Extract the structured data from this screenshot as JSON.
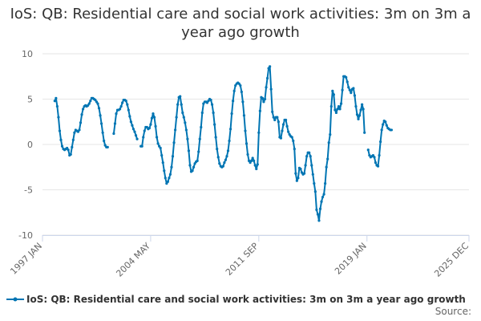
{
  "chart_data": {
    "type": "line",
    "title": "IoS: QB: Residential care and social work activities: 3m on 3m a year ago growth",
    "xlabel": "",
    "ylabel": "",
    "ylim": [
      -10,
      10
    ],
    "yticks": [
      10,
      5,
      0,
      -5,
      -10
    ],
    "x_tick_labels": [
      "1997 JAN",
      "2004 MAY",
      "2011 SEP",
      "2019 JAN",
      "2025 DEC"
    ],
    "x_tick_indices": [
      0,
      88,
      176,
      264,
      347
    ],
    "start_month": "1997 JAN",
    "end_month": "2025 DEC",
    "legend_position": "bottom-left",
    "source_label": "Source:",
    "series": [
      {
        "name": "IoS: QB: Residential care and social work activities: 3m on 3m a year ago growth",
        "color": "#0075b3",
        "start_index": 10,
        "values": [
          4.8,
          5.1,
          4.2,
          3.0,
          1.5,
          0.5,
          -0.2,
          -0.5,
          -0.6,
          -0.5,
          -0.4,
          -0.6,
          -1.2,
          -1.1,
          -0.3,
          0.5,
          1.3,
          1.6,
          1.5,
          1.4,
          1.6,
          2.4,
          3.3,
          3.9,
          4.2,
          4.3,
          4.2,
          4.3,
          4.5,
          4.8,
          5.1,
          5.1,
          5.0,
          4.9,
          4.7,
          4.5,
          4.0,
          3.2,
          2.3,
          1.3,
          0.4,
          -0.1,
          -0.3,
          -0.3,
          null,
          null,
          null,
          null,
          1.2,
          2.3,
          3.4,
          3.8,
          3.8,
          3.9,
          4.2,
          4.6,
          4.9,
          4.9,
          4.8,
          4.4,
          3.8,
          3.1,
          2.5,
          2.1,
          1.7,
          1.4,
          1.0,
          0.6,
          null,
          null,
          -0.2,
          -0.2,
          0.8,
          1.5,
          1.9,
          1.9,
          1.7,
          1.8,
          2.2,
          2.9,
          3.4,
          3.0,
          2.0,
          0.8,
          0.1,
          -0.2,
          -0.4,
          -1.2,
          -2.0,
          -2.9,
          -3.7,
          -4.3,
          -4.1,
          -3.7,
          -3.3,
          -2.5,
          -1.3,
          0.2,
          1.6,
          3.0,
          4.4,
          5.2,
          5.3,
          4.4,
          3.5,
          3.0,
          2.4,
          1.6,
          0.6,
          -0.7,
          -2.3,
          -3.0,
          -2.9,
          -2.5,
          -2.1,
          -1.9,
          -1.8,
          -0.8,
          0.6,
          1.9,
          3.5,
          4.5,
          4.7,
          4.7,
          4.6,
          4.8,
          5.0,
          4.9,
          4.4,
          3.5,
          2.2,
          0.8,
          -0.5,
          -1.4,
          -2.1,
          -2.4,
          -2.5,
          -2.4,
          -2.0,
          -1.7,
          -1.3,
          -0.7,
          0.4,
          1.7,
          3.4,
          4.8,
          5.9,
          6.5,
          6.7,
          6.8,
          6.7,
          6.5,
          5.8,
          4.7,
          3.2,
          1.5,
          0.1,
          -1.1,
          -1.8,
          -2.0,
          -1.8,
          -1.5,
          -1.8,
          -2.3,
          -2.7,
          -2.2,
          1.3,
          3.7,
          5.2,
          5.1,
          4.7,
          5.0,
          6.3,
          7.3,
          8.4,
          8.6,
          6.1,
          3.6,
          3.0,
          2.7,
          3.0,
          3.0,
          2.5,
          0.8,
          0.7,
          1.5,
          2.2,
          2.7,
          2.7,
          2.0,
          1.4,
          1.1,
          0.9,
          0.8,
          0.4,
          -0.5,
          -3.2,
          -4.0,
          -3.7,
          -2.6,
          -2.7,
          -3.1,
          -3.3,
          -3.2,
          -2.3,
          -1.3,
          -0.9,
          -0.9,
          -1.3,
          -2.3,
          -3.3,
          -4.3,
          -5.2,
          -7.2,
          -7.7,
          -8.4,
          -7.1,
          -6.3,
          -5.8,
          -5.5,
          -4.3,
          -2.5,
          -1.6,
          0.2,
          1.1,
          4.2,
          5.9,
          5.5,
          3.8,
          3.5,
          3.9,
          4.2,
          3.9,
          4.5,
          6.0,
          7.5,
          7.5,
          7.4,
          6.9,
          6.3,
          6.0,
          5.7,
          6.1,
          6.2,
          5.4,
          4.2,
          3.3,
          2.8,
          3.2,
          3.8,
          4.4,
          3.9,
          1.3,
          null,
          null,
          -0.6,
          -1.2,
          -1.4,
          -1.3,
          -1.2,
          -1.4,
          -2.0,
          -2.3,
          -2.4,
          -1.2,
          0.3,
          1.6,
          2.2,
          2.6,
          2.5,
          2.1,
          1.8,
          1.7,
          1.6,
          1.6
        ]
      }
    ]
  }
}
